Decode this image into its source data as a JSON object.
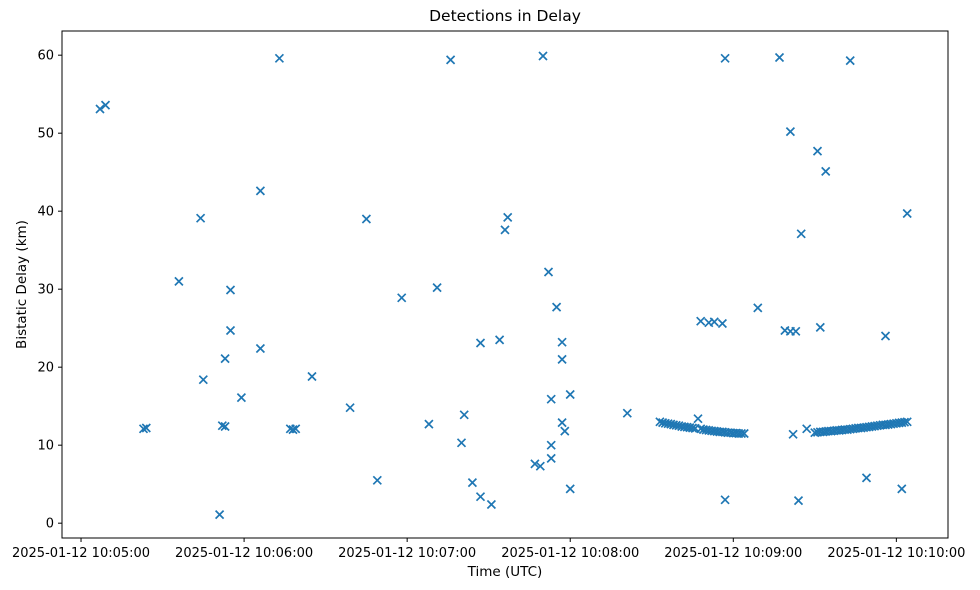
{
  "figure": {
    "background": "#ffffff",
    "text_color": "#000000",
    "spine_color": "#000000"
  },
  "chart_data": {
    "type": "scatter",
    "title": "Detections in Delay",
    "xlabel": "Time (UTC)",
    "ylabel": "Bistatic Delay (km)",
    "date": "2025-01-12",
    "marker": "x",
    "marker_color": "#1f77b4",
    "grid": false,
    "legend": null,
    "xlim": [
      "10:04:53",
      "10:10:19"
    ],
    "ylim": [
      -1.9,
      63.1
    ],
    "y_ticks": [
      0,
      10,
      20,
      30,
      40,
      50,
      60
    ],
    "x_ticks": [
      {
        "time": "10:05:00",
        "label": "2025-01-12 10:05:00"
      },
      {
        "time": "10:06:00",
        "label": "2025-01-12 10:06:00"
      },
      {
        "time": "10:07:00",
        "label": "2025-01-12 10:07:00"
      },
      {
        "time": "10:08:00",
        "label": "2025-01-12 10:08:00"
      },
      {
        "time": "10:09:00",
        "label": "2025-01-12 10:09:00"
      },
      {
        "time": "10:10:00",
        "label": "2025-01-12 10:10:00"
      }
    ],
    "points": [
      [
        "10:05:07",
        53.1
      ],
      [
        "10:05:09",
        53.6
      ],
      [
        "10:05:23",
        12.1
      ],
      [
        "10:05:24",
        12.2
      ],
      [
        "10:05:36",
        31.0
      ],
      [
        "10:05:44",
        39.1
      ],
      [
        "10:05:45",
        18.4
      ],
      [
        "10:05:51",
        1.1
      ],
      [
        "10:05:52",
        12.5
      ],
      [
        "10:05:53",
        12.4
      ],
      [
        "10:05:53",
        21.1
      ],
      [
        "10:05:55",
        29.9
      ],
      [
        "10:05:55",
        24.7
      ],
      [
        "10:05:59",
        16.1
      ],
      [
        "10:06:06",
        42.6
      ],
      [
        "10:06:06",
        22.4
      ],
      [
        "10:06:13",
        59.6
      ],
      [
        "10:06:17",
        12.1
      ],
      [
        "10:06:18",
        12.0
      ],
      [
        "10:06:19",
        12.1
      ],
      [
        "10:06:25",
        18.8
      ],
      [
        "10:06:39",
        14.8
      ],
      [
        "10:06:45",
        39.0
      ],
      [
        "10:06:49",
        5.5
      ],
      [
        "10:06:58",
        28.9
      ],
      [
        "10:07:08",
        12.7
      ],
      [
        "10:07:11",
        30.2
      ],
      [
        "10:07:16",
        59.4
      ],
      [
        "10:07:20",
        10.3
      ],
      [
        "10:07:21",
        13.9
      ],
      [
        "10:07:24",
        5.2
      ],
      [
        "10:07:27",
        23.1
      ],
      [
        "10:07:27",
        3.4
      ],
      [
        "10:07:31",
        2.4
      ],
      [
        "10:07:34",
        23.5
      ],
      [
        "10:07:36",
        37.6
      ],
      [
        "10:07:37",
        39.2
      ],
      [
        "10:07:47",
        7.6
      ],
      [
        "10:07:49",
        7.3
      ],
      [
        "10:07:50",
        59.9
      ],
      [
        "10:07:52",
        32.2
      ],
      [
        "10:07:53",
        15.9
      ],
      [
        "10:07:53",
        10.0
      ],
      [
        "10:07:53",
        8.3
      ],
      [
        "10:07:55",
        27.7
      ],
      [
        "10:07:57",
        23.2
      ],
      [
        "10:07:57",
        21.0
      ],
      [
        "10:07:57",
        12.9
      ],
      [
        "10:07:58",
        11.8
      ],
      [
        "10:08:00",
        16.5
      ],
      [
        "10:08:00",
        4.4
      ],
      [
        "10:08:21",
        14.1
      ],
      [
        "10:08:33",
        13.0
      ],
      [
        "10:08:34",
        12.9
      ],
      [
        "10:08:35",
        12.8
      ],
      [
        "10:08:36",
        12.75
      ],
      [
        "10:08:37",
        12.7
      ],
      [
        "10:08:38",
        12.6
      ],
      [
        "10:08:39",
        12.55
      ],
      [
        "10:08:40",
        12.5
      ],
      [
        "10:08:41",
        12.4
      ],
      [
        "10:08:42",
        12.35
      ],
      [
        "10:08:43",
        12.3
      ],
      [
        "10:08:44",
        12.25
      ],
      [
        "10:08:45",
        12.2
      ],
      [
        "10:08:46",
        12.15
      ],
      [
        "10:08:47",
        13.4
      ],
      [
        "10:08:48",
        12.1
      ],
      [
        "10:08:49",
        12.0
      ],
      [
        "10:08:50",
        11.95
      ],
      [
        "10:08:51",
        11.9
      ],
      [
        "10:08:52",
        11.85
      ],
      [
        "10:08:53",
        11.8
      ],
      [
        "10:08:54",
        11.75
      ],
      [
        "10:08:55",
        11.7
      ],
      [
        "10:08:56",
        11.7
      ],
      [
        "10:08:57",
        11.65
      ],
      [
        "10:08:58",
        11.6
      ],
      [
        "10:08:59",
        11.6
      ],
      [
        "10:09:00",
        11.55
      ],
      [
        "10:09:01",
        11.55
      ],
      [
        "10:09:02",
        11.5
      ],
      [
        "10:09:03",
        11.5
      ],
      [
        "10:09:04",
        11.5
      ],
      [
        "10:08:48",
        25.9
      ],
      [
        "10:08:51",
        25.7
      ],
      [
        "10:08:53",
        25.8
      ],
      [
        "10:08:56",
        25.6
      ],
      [
        "10:08:57",
        59.6
      ],
      [
        "10:08:57",
        3.0
      ],
      [
        "10:09:09",
        27.6
      ],
      [
        "10:09:17",
        59.7
      ],
      [
        "10:09:19",
        24.7
      ],
      [
        "10:09:21",
        24.6
      ],
      [
        "10:09:23",
        24.6
      ],
      [
        "10:09:21",
        50.2
      ],
      [
        "10:09:22",
        11.4
      ],
      [
        "10:09:24",
        2.9
      ],
      [
        "10:09:25",
        37.1
      ],
      [
        "10:09:27",
        12.1
      ],
      [
        "10:09:31",
        47.7
      ],
      [
        "10:09:32",
        25.1
      ],
      [
        "10:09:34",
        45.1
      ],
      [
        "10:09:30",
        11.6
      ],
      [
        "10:09:31",
        11.65
      ],
      [
        "10:09:32",
        11.7
      ],
      [
        "10:09:33",
        11.7
      ],
      [
        "10:09:34",
        11.75
      ],
      [
        "10:09:35",
        11.8
      ],
      [
        "10:09:36",
        11.8
      ],
      [
        "10:09:37",
        11.85
      ],
      [
        "10:09:38",
        11.9
      ],
      [
        "10:09:39",
        11.9
      ],
      [
        "10:09:40",
        11.95
      ],
      [
        "10:09:41",
        12.0
      ],
      [
        "10:09:42",
        12.0
      ],
      [
        "10:09:43",
        12.05
      ],
      [
        "10:09:44",
        12.1
      ],
      [
        "10:09:45",
        12.15
      ],
      [
        "10:09:46",
        12.2
      ],
      [
        "10:09:47",
        12.2
      ],
      [
        "10:09:48",
        12.25
      ],
      [
        "10:09:49",
        12.3
      ],
      [
        "10:09:50",
        12.35
      ],
      [
        "10:09:51",
        12.4
      ],
      [
        "10:09:52",
        12.45
      ],
      [
        "10:09:53",
        12.5
      ],
      [
        "10:09:54",
        12.55
      ],
      [
        "10:09:55",
        12.6
      ],
      [
        "10:09:56",
        12.6
      ],
      [
        "10:09:57",
        12.65
      ],
      [
        "10:09:58",
        12.7
      ],
      [
        "10:09:59",
        12.75
      ],
      [
        "10:10:00",
        12.8
      ],
      [
        "10:10:01",
        12.85
      ],
      [
        "10:10:02",
        12.9
      ],
      [
        "10:10:03",
        12.95
      ],
      [
        "10:10:04",
        13.0
      ],
      [
        "10:09:43",
        59.3
      ],
      [
        "10:09:49",
        5.8
      ],
      [
        "10:09:56",
        24.0
      ],
      [
        "10:10:02",
        4.4
      ],
      [
        "10:10:04",
        39.7
      ]
    ]
  }
}
